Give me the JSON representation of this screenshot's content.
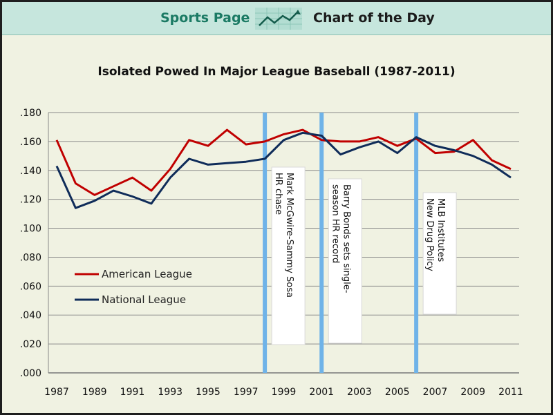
{
  "banner": {
    "left_label": "Sports Page",
    "right_label": "Chart of the Day",
    "icon": "trend-chart-icon"
  },
  "chart_data": {
    "type": "line",
    "title": "Isolated Powed In Major League Baseball (1987-2011)",
    "xlabel": "",
    "ylabel": "",
    "x": [
      1987,
      1988,
      1989,
      1990,
      1991,
      1992,
      1993,
      1994,
      1995,
      1996,
      1997,
      1998,
      1999,
      2000,
      2001,
      2002,
      2003,
      2004,
      2005,
      2006,
      2007,
      2008,
      2009,
      2010,
      2011
    ],
    "x_tick_labels": [
      "1987",
      "1989",
      "1991",
      "1993",
      "1995",
      "1997",
      "1999",
      "2001",
      "2003",
      "2005",
      "2007",
      "2009",
      "2011"
    ],
    "y_tick_labels": [
      ".000",
      ".020",
      ".040",
      ".060",
      ".080",
      ".100",
      ".120",
      ".140",
      ".160",
      ".180"
    ],
    "ylim": [
      0,
      0.18
    ],
    "grid": true,
    "legend_position": "left",
    "series": [
      {
        "name": "American League",
        "color": "#c00000",
        "values": [
          0.161,
          0.131,
          0.123,
          0.129,
          0.135,
          0.126,
          0.141,
          0.161,
          0.157,
          0.168,
          0.158,
          0.16,
          0.165,
          0.168,
          0.161,
          0.16,
          0.16,
          0.163,
          0.157,
          0.162,
          0.152,
          0.153,
          0.161,
          0.147,
          0.141
        ]
      },
      {
        "name": "National League",
        "color": "#0f2c59",
        "values": [
          0.143,
          0.114,
          0.119,
          0.126,
          0.122,
          0.117,
          0.135,
          0.148,
          0.144,
          0.145,
          0.146,
          0.148,
          0.161,
          0.166,
          0.164,
          0.151,
          0.156,
          0.16,
          0.152,
          0.163,
          0.157,
          0.154,
          0.15,
          0.144,
          0.135
        ]
      }
    ],
    "annotations": [
      {
        "x": 1998,
        "lines": [
          "Mark McGwire-Sammy Sosa",
          "HR chase"
        ]
      },
      {
        "x": 2001,
        "lines": [
          "Barry Bonds sets single-",
          "season HR record"
        ]
      },
      {
        "x": 2006,
        "lines": [
          "MLB Institutes",
          "New Drug Policy"
        ]
      }
    ],
    "annotation_line_color": "#6fb3e8"
  }
}
